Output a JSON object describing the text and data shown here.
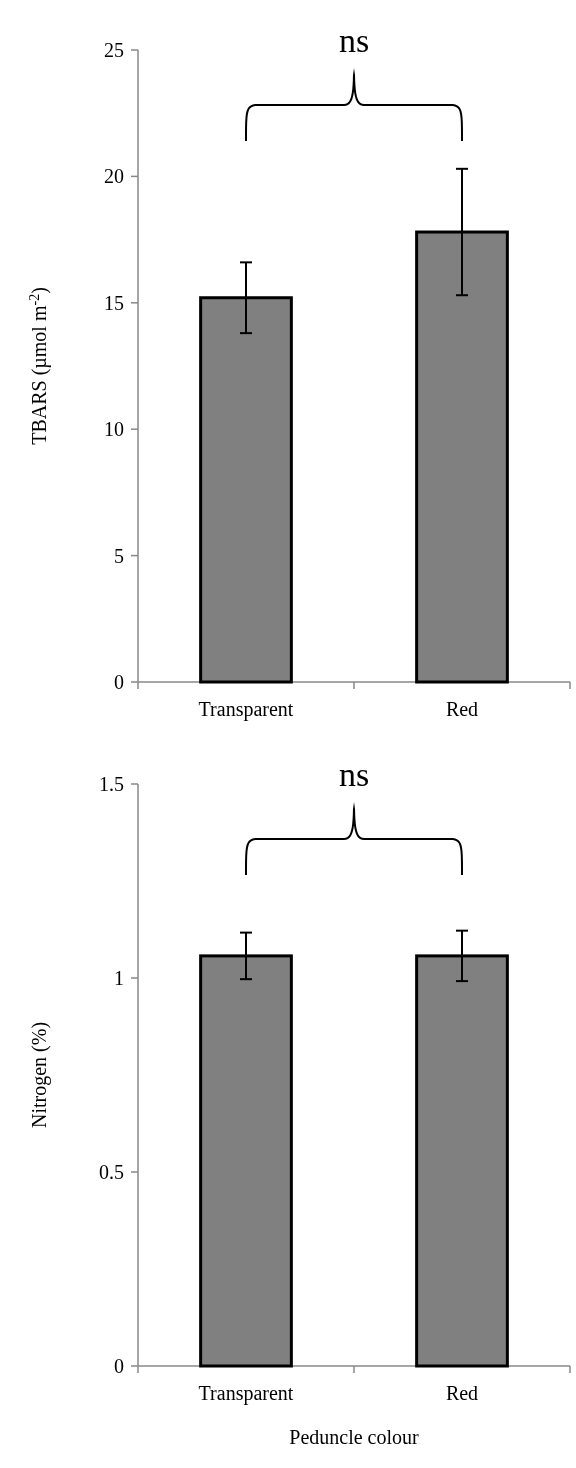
{
  "chart_data": [
    {
      "type": "bar",
      "categories": [
        "Transparent",
        "Red"
      ],
      "values": [
        15.2,
        17.8
      ],
      "errors": [
        1.4,
        2.5
      ],
      "color": "#808080",
      "ylabel": "TBARS (µmol m$^{-2}$)",
      "ylim": [
        0,
        25
      ],
      "yticks": [
        0,
        5,
        10,
        15,
        20,
        25
      ],
      "annotations": [
        "ns"
      ]
    },
    {
      "type": "bar",
      "categories": [
        "Transparent",
        "Red"
      ],
      "values": [
        1.057,
        1.057
      ],
      "errors": [
        0.06,
        0.065
      ],
      "color": "#808080",
      "ylabel": "Nitrogen (%)",
      "xlabel": "Peduncle colour",
      "ylim": [
        0,
        1.5
      ],
      "yticks": [
        0,
        0.5,
        1,
        1.5
      ],
      "annotations": [
        "ns"
      ]
    }
  ]
}
